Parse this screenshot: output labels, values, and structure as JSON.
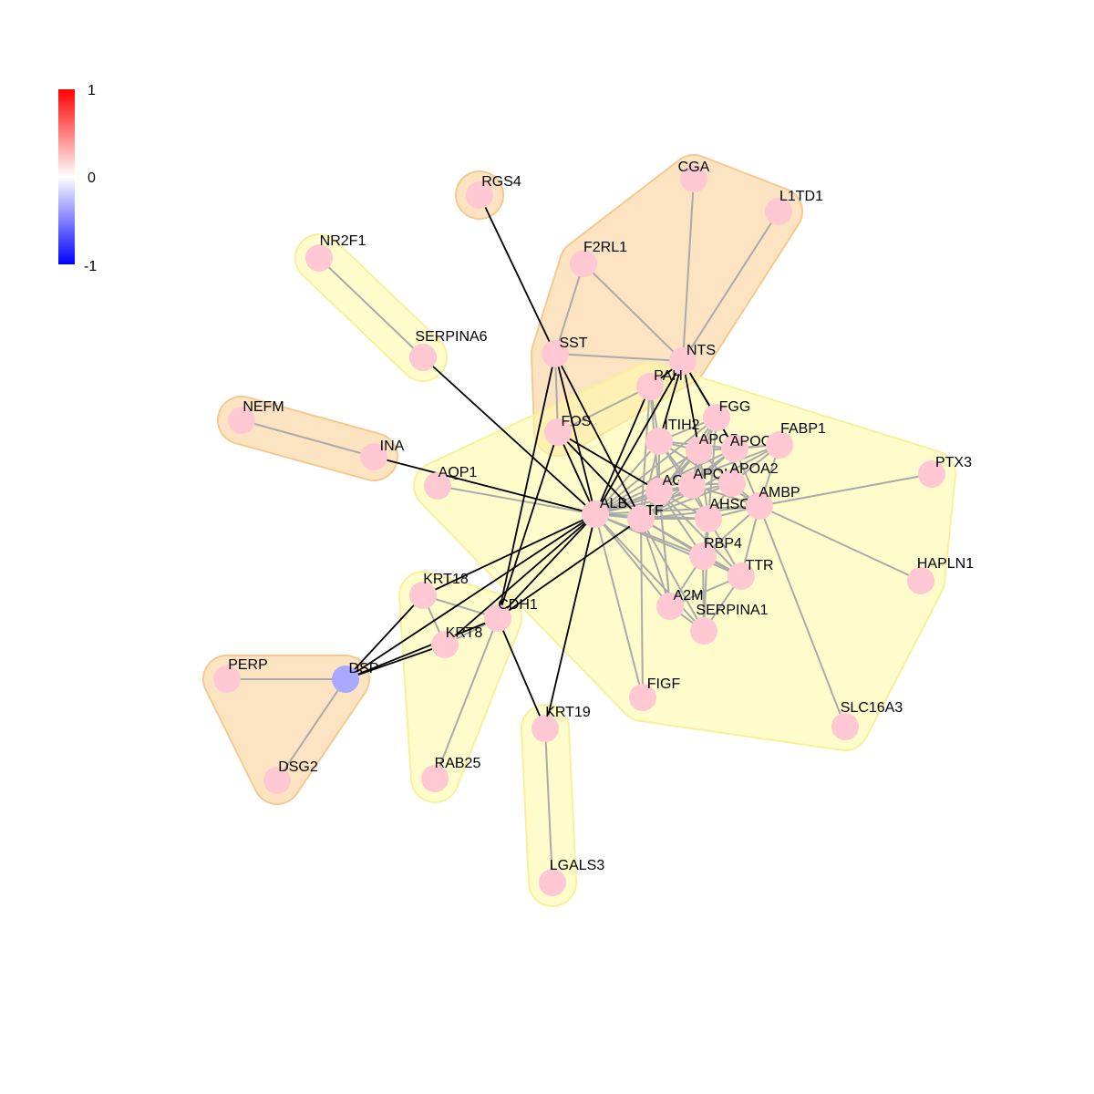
{
  "legend": {
    "ticks": {
      "max": "1",
      "mid": "0",
      "min": "-1"
    },
    "colors": {
      "high": "#ff0000",
      "mid": "#ffffff",
      "low": "#0000ff"
    }
  },
  "node_colors": {
    "default": "#ffc8d2",
    "negative": "#a9a9ff"
  },
  "edge_colors": {
    "gray": "#aaaaaa",
    "black": "#000000"
  },
  "hull_colors": {
    "orange": "#fbd9a8",
    "yellow": "#fffaa8"
  },
  "nodes": [
    {
      "id": "CGA",
      "label": "CGA"
    },
    {
      "id": "L1TD1",
      "label": "L1TD1"
    },
    {
      "id": "RGS4",
      "label": "RGS4"
    },
    {
      "id": "NR2F1",
      "label": "NR2F1"
    },
    {
      "id": "F2RL1",
      "label": "F2RL1"
    },
    {
      "id": "SERPINA6",
      "label": "SERPINA6"
    },
    {
      "id": "SST",
      "label": "SST"
    },
    {
      "id": "NTS",
      "label": "NTS"
    },
    {
      "id": "PAH",
      "label": "PAH"
    },
    {
      "id": "NEFM",
      "label": "NEFM"
    },
    {
      "id": "FOS",
      "label": "FOS"
    },
    {
      "id": "FGG",
      "label": "FGG"
    },
    {
      "id": "ITIH2",
      "label": "ITIH2"
    },
    {
      "id": "APOB",
      "label": "APOB"
    },
    {
      "id": "APOC3",
      "label": "APOC3"
    },
    {
      "id": "FABP1",
      "label": "FABP1"
    },
    {
      "id": "INA",
      "label": "INA"
    },
    {
      "id": "AQP1",
      "label": "AQP1"
    },
    {
      "id": "AGT",
      "label": "AGT"
    },
    {
      "id": "APOH",
      "label": "APOH"
    },
    {
      "id": "APOA2",
      "label": "APOA2"
    },
    {
      "id": "PTX3",
      "label": "PTX3"
    },
    {
      "id": "ALB",
      "label": "ALB"
    },
    {
      "id": "TF",
      "label": "TF"
    },
    {
      "id": "AHSG",
      "label": "AHSG"
    },
    {
      "id": "AMBP",
      "label": "AMBP"
    },
    {
      "id": "RBP4",
      "label": "RBP4"
    },
    {
      "id": "TTR",
      "label": "TTR"
    },
    {
      "id": "HAPLN1",
      "label": "HAPLN1"
    },
    {
      "id": "KRT18",
      "label": "KRT18"
    },
    {
      "id": "CDH1",
      "label": "CDH1"
    },
    {
      "id": "A2M",
      "label": "A2M"
    },
    {
      "id": "SERPINA1",
      "label": "SERPINA1"
    },
    {
      "id": "KRT8",
      "label": "KRT8"
    },
    {
      "id": "PERP",
      "label": "PERP"
    },
    {
      "id": "DSP",
      "label": "DSP",
      "negative": true
    },
    {
      "id": "FIGF",
      "label": "FIGF"
    },
    {
      "id": "SLC16A3",
      "label": "SLC16A3"
    },
    {
      "id": "KRT19",
      "label": "KRT19"
    },
    {
      "id": "RAB25",
      "label": "RAB25"
    },
    {
      "id": "DSG2",
      "label": "DSG2"
    },
    {
      "id": "LGALS3",
      "label": "LGALS3"
    }
  ],
  "edges_gray": [
    [
      "CGA",
      "NTS"
    ],
    [
      "L1TD1",
      "NTS"
    ],
    [
      "F2RL1",
      "SST"
    ],
    [
      "F2RL1",
      "NTS"
    ],
    [
      "SST",
      "NTS"
    ],
    [
      "SST",
      "FOS"
    ],
    [
      "NR2F1",
      "SERPINA6"
    ],
    [
      "NEFM",
      "INA"
    ],
    [
      "AQP1",
      "ALB"
    ],
    [
      "PTX3",
      "AMBP"
    ],
    [
      "HAPLN1",
      "AMBP"
    ],
    [
      "SLC16A3",
      "AMBP"
    ],
    [
      "PERP",
      "DSP"
    ],
    [
      "DSG2",
      "DSP"
    ],
    [
      "KRT18",
      "KRT8"
    ],
    [
      "KRT18",
      "CDH1"
    ],
    [
      "KRT8",
      "CDH1"
    ],
    [
      "RAB25",
      "CDH1"
    ],
    [
      "KRT19",
      "LGALS3"
    ],
    [
      "FOS",
      "PAH"
    ],
    [
      "PAH",
      "ITIH2"
    ],
    [
      "PAH",
      "AGT"
    ],
    [
      "PAH",
      "TF"
    ],
    [
      "ALB",
      "TF"
    ],
    [
      "ALB",
      "ITIH2"
    ],
    [
      "ALB",
      "APOB"
    ],
    [
      "ALB",
      "APOC3"
    ],
    [
      "ALB",
      "AGT"
    ],
    [
      "ALB",
      "APOH"
    ],
    [
      "ALB",
      "APOA2"
    ],
    [
      "ALB",
      "AHSG"
    ],
    [
      "ALB",
      "AMBP"
    ],
    [
      "ALB",
      "RBP4"
    ],
    [
      "ALB",
      "TTR"
    ],
    [
      "ALB",
      "A2M"
    ],
    [
      "ALB",
      "SERPINA1"
    ],
    [
      "ALB",
      "FIGF"
    ],
    [
      "ALB",
      "FGG"
    ],
    [
      "ALB",
      "FABP1"
    ],
    [
      "TF",
      "ITIH2"
    ],
    [
      "TF",
      "APOB"
    ],
    [
      "TF",
      "APOC3"
    ],
    [
      "TF",
      "AGT"
    ],
    [
      "TF",
      "APOH"
    ],
    [
      "TF",
      "APOA2"
    ],
    [
      "TF",
      "AHSG"
    ],
    [
      "TF",
      "AMBP"
    ],
    [
      "TF",
      "RBP4"
    ],
    [
      "TF",
      "TTR"
    ],
    [
      "TF",
      "A2M"
    ],
    [
      "TF",
      "SERPINA1"
    ],
    [
      "TF",
      "FGG"
    ],
    [
      "TF",
      "FABP1"
    ],
    [
      "TF",
      "FIGF"
    ],
    [
      "ITIH2",
      "APOB"
    ],
    [
      "ITIH2",
      "APOH"
    ],
    [
      "ITIH2",
      "AGT"
    ],
    [
      "ITIH2",
      "AHSG"
    ],
    [
      "ITIH2",
      "FGG"
    ],
    [
      "ITIH2",
      "APOC3"
    ],
    [
      "APOB",
      "APOC3"
    ],
    [
      "APOB",
      "APOH"
    ],
    [
      "APOB",
      "APOA2"
    ],
    [
      "APOB",
      "AGT"
    ],
    [
      "APOB",
      "AHSG"
    ],
    [
      "APOB",
      "FGG"
    ],
    [
      "APOB",
      "FABP1"
    ],
    [
      "APOC3",
      "APOA2"
    ],
    [
      "APOC3",
      "FABP1"
    ],
    [
      "APOC3",
      "APOH"
    ],
    [
      "APOC3",
      "AMBP"
    ],
    [
      "APOH",
      "APOA2"
    ],
    [
      "APOH",
      "AGT"
    ],
    [
      "APOH",
      "AHSG"
    ],
    [
      "APOH",
      "AMBP"
    ],
    [
      "APOA2",
      "AHSG"
    ],
    [
      "APOA2",
      "AMBP"
    ],
    [
      "APOA2",
      "FABP1"
    ],
    [
      "AGT",
      "AHSG"
    ],
    [
      "AGT",
      "RBP4"
    ],
    [
      "AHSG",
      "AMBP"
    ],
    [
      "AHSG",
      "RBP4"
    ],
    [
      "AHSG",
      "TTR"
    ],
    [
      "AMBP",
      "RBP4"
    ],
    [
      "AMBP",
      "TTR"
    ],
    [
      "RBP4",
      "TTR"
    ],
    [
      "RBP4",
      "A2M"
    ],
    [
      "RBP4",
      "SERPINA1"
    ],
    [
      "TTR",
      "SERPINA1"
    ],
    [
      "TTR",
      "A2M"
    ],
    [
      "A2M",
      "SERPINA1"
    ],
    [
      "A2M",
      "AGT"
    ],
    [
      "SERPINA1",
      "AHSG"
    ],
    [
      "FGG",
      "AHSG"
    ],
    [
      "FGG",
      "APOH"
    ],
    [
      "FABP1",
      "AMBP"
    ],
    [
      "AGT",
      "A2M"
    ],
    [
      "ITIH2",
      "AMBP"
    ],
    [
      "AGT",
      "TTR"
    ]
  ],
  "edges_black": [
    [
      "RGS4",
      "SST"
    ],
    [
      "SERPINA6",
      "ALB"
    ],
    [
      "INA",
      "ALB"
    ],
    [
      "SST",
      "ALB"
    ],
    [
      "SST",
      "TF"
    ],
    [
      "SST",
      "CDH1"
    ],
    [
      "NTS",
      "PAH"
    ],
    [
      "NTS",
      "ALB"
    ],
    [
      "NTS",
      "FGG"
    ],
    [
      "NTS",
      "APOB"
    ],
    [
      "NTS",
      "APOC3"
    ],
    [
      "NTS",
      "ITIH2"
    ],
    [
      "FOS",
      "ALB"
    ],
    [
      "FOS",
      "TF"
    ],
    [
      "FOS",
      "AGT"
    ],
    [
      "FOS",
      "CDH1"
    ],
    [
      "PAH",
      "ALB"
    ],
    [
      "ALB",
      "KRT18"
    ],
    [
      "ALB",
      "KRT8"
    ],
    [
      "ALB",
      "CDH1"
    ],
    [
      "ALB",
      "KRT19"
    ],
    [
      "ALB",
      "DSP"
    ],
    [
      "TF",
      "CDH1"
    ],
    [
      "KRT18",
      "DSP"
    ],
    [
      "KRT8",
      "DSP"
    ],
    [
      "CDH1",
      "DSP"
    ],
    [
      "CDH1",
      "KRT19"
    ]
  ],
  "hulls": [
    {
      "color": "orange",
      "members": [
        "CGA",
        "L1TD1",
        "F2RL1",
        "SST",
        "NTS",
        "FOS"
      ]
    },
    {
      "color": "orange",
      "members": [
        "RGS4"
      ]
    },
    {
      "color": "yellow",
      "members": [
        "NR2F1",
        "SERPINA6"
      ]
    },
    {
      "color": "orange",
      "members": [
        "NEFM",
        "INA"
      ]
    },
    {
      "color": "yellow",
      "members": [
        "AQP1",
        "PAH",
        "ALB",
        "TF",
        "FGG",
        "ITIH2",
        "APOB",
        "APOC3",
        "FABP1",
        "AGT",
        "APOH",
        "APOA2",
        "AHSG",
        "AMBP",
        "RBP4",
        "TTR",
        "A2M",
        "SERPINA1",
        "FIGF",
        "PTX3",
        "HAPLN1",
        "SLC16A3"
      ]
    },
    {
      "color": "yellow",
      "members": [
        "KRT18",
        "CDH1",
        "KRT8",
        "RAB25"
      ]
    },
    {
      "color": "orange",
      "members": [
        "PERP",
        "DSP",
        "DSG2"
      ]
    },
    {
      "color": "yellow",
      "members": [
        "KRT19",
        "LGALS3"
      ]
    }
  ]
}
